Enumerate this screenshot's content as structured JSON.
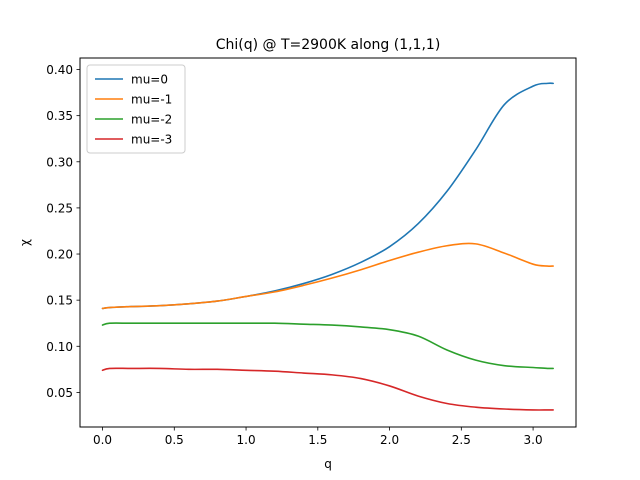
{
  "chart_data": {
    "type": "line",
    "title": "Chi(q) @ T=2900K along (1,1,1)",
    "xlabel": "q",
    "ylabel": "χ",
    "xlim": [
      -0.157,
      3.299
    ],
    "ylim": [
      0.0125,
      0.4125
    ],
    "xticks": [
      0.0,
      0.5,
      1.0,
      1.5,
      2.0,
      2.5,
      3.0
    ],
    "xtick_labels": [
      "0.0",
      "0.5",
      "1.0",
      "1.5",
      "2.0",
      "2.5",
      "3.0"
    ],
    "yticks": [
      0.05,
      0.1,
      0.15,
      0.2,
      0.25,
      0.3,
      0.35,
      0.4
    ],
    "ytick_labels": [
      "0.05",
      "0.10",
      "0.15",
      "0.20",
      "0.25",
      "0.30",
      "0.35",
      "0.40"
    ],
    "grid": false,
    "legend_position": "top-left",
    "x": [
      0.0,
      0.05,
      0.2,
      0.4,
      0.6,
      0.8,
      1.0,
      1.2,
      1.4,
      1.6,
      1.8,
      2.0,
      2.2,
      2.4,
      2.6,
      2.8,
      3.0,
      3.1,
      3.14
    ],
    "series": [
      {
        "name": "mu=0",
        "color": "#1f77b4",
        "values": [
          0.141,
          0.142,
          0.143,
          0.144,
          0.146,
          0.149,
          0.154,
          0.16,
          0.168,
          0.178,
          0.191,
          0.208,
          0.233,
          0.268,
          0.313,
          0.362,
          0.382,
          0.385,
          0.385
        ]
      },
      {
        "name": "mu=-1",
        "color": "#ff7f0e",
        "values": [
          0.141,
          0.142,
          0.143,
          0.144,
          0.146,
          0.149,
          0.154,
          0.159,
          0.166,
          0.174,
          0.183,
          0.193,
          0.202,
          0.209,
          0.211,
          0.201,
          0.189,
          0.187,
          0.187
        ]
      },
      {
        "name": "mu=-2",
        "color": "#2ca02c",
        "values": [
          0.123,
          0.125,
          0.125,
          0.125,
          0.125,
          0.125,
          0.125,
          0.125,
          0.124,
          0.123,
          0.121,
          0.118,
          0.111,
          0.096,
          0.085,
          0.079,
          0.077,
          0.076,
          0.076
        ]
      },
      {
        "name": "mu=-3",
        "color": "#d62728",
        "values": [
          0.074,
          0.076,
          0.076,
          0.076,
          0.075,
          0.075,
          0.074,
          0.073,
          0.071,
          0.069,
          0.065,
          0.057,
          0.046,
          0.038,
          0.034,
          0.032,
          0.031,
          0.031,
          0.031
        ]
      }
    ]
  }
}
